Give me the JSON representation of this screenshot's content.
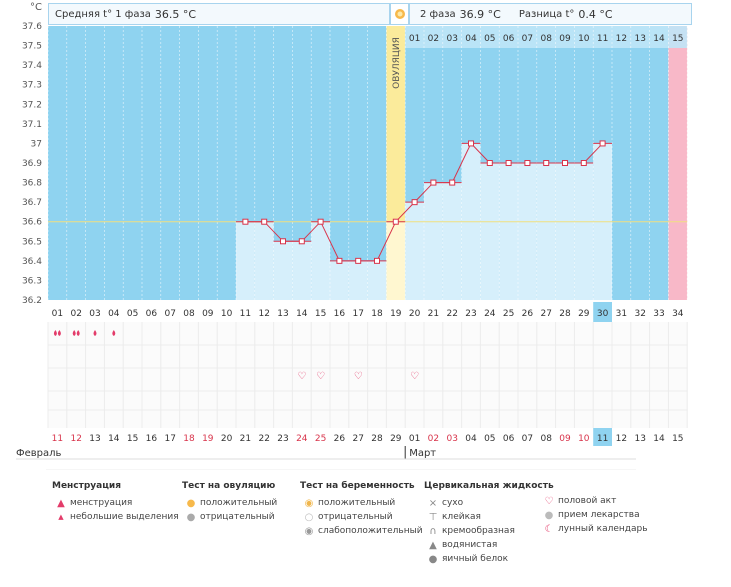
{
  "unit_label": "°C",
  "summary": {
    "phase1_label": "Средняя t° 1 фаза",
    "phase1_value": "36.5 °C",
    "phase2_label": "2 фаза",
    "phase2_value": "36.9 °C",
    "diff_label": "Разница t°",
    "diff_value": "0.4 °C"
  },
  "ovulation_label": "ОВУЛЯЦИЯ",
  "colors": {
    "menstruation_bg": "#8fd3f0",
    "phase2_bg": "#bfe6f7",
    "ovulation": "#fbeb9b",
    "next_period": "#f8b8c8",
    "line": "#d8344b",
    "coverline": "#f0e080"
  },
  "chart_data": {
    "type": "line",
    "title": "",
    "xlabel": "",
    "ylabel": "°C",
    "ylim": [
      36.2,
      37.6
    ],
    "y_ticks": [
      "36.2",
      "36.3",
      "36.4",
      "36.5",
      "36.6",
      "36.7",
      "36.8",
      "36.9",
      "37",
      "37.1",
      "37.2",
      "37.3",
      "37.4",
      "37.5",
      "37.6"
    ],
    "coverline": 36.6,
    "cycle_days": [
      "01",
      "02",
      "03",
      "04",
      "05",
      "06",
      "07",
      "08",
      "09",
      "10",
      "11",
      "12",
      "13",
      "14",
      "15",
      "16",
      "17",
      "18",
      "19",
      "20",
      "21",
      "22",
      "23",
      "24",
      "25",
      "26",
      "27",
      "28",
      "29",
      "30",
      "31",
      "32",
      "33",
      "34"
    ],
    "ovulation_day": 19,
    "today_day": 30,
    "post_ovulation_days": [
      "01",
      "02",
      "03",
      "04",
      "05",
      "06",
      "07",
      "08",
      "09",
      "10",
      "11",
      "12",
      "13",
      "14",
      "15"
    ],
    "temperatures": [
      {
        "day": 11,
        "t": 36.6
      },
      {
        "day": 12,
        "t": 36.6
      },
      {
        "day": 13,
        "t": 36.5
      },
      {
        "day": 14,
        "t": 36.5
      },
      {
        "day": 15,
        "t": 36.6
      },
      {
        "day": 16,
        "t": 36.4
      },
      {
        "day": 17,
        "t": 36.4
      },
      {
        "day": 18,
        "t": 36.4
      },
      {
        "day": 19,
        "t": 36.6
      },
      {
        "day": 20,
        "t": 36.7
      },
      {
        "day": 21,
        "t": 36.8
      },
      {
        "day": 22,
        "t": 36.8
      },
      {
        "day": 23,
        "t": 37.0
      },
      {
        "day": 24,
        "t": 36.9
      },
      {
        "day": 25,
        "t": 36.9
      },
      {
        "day": 26,
        "t": 36.9
      },
      {
        "day": 27,
        "t": 36.9
      },
      {
        "day": 28,
        "t": 36.9
      },
      {
        "day": 29,
        "t": 36.9
      },
      {
        "day": 30,
        "t": 37.0
      }
    ],
    "menstruation_marks": [
      {
        "day": 1,
        "kind": "heavy"
      },
      {
        "day": 2,
        "kind": "heavy"
      },
      {
        "day": 3,
        "kind": "light"
      },
      {
        "day": 4,
        "kind": "light"
      }
    ],
    "intercourse_days": [
      14,
      15,
      17,
      20
    ],
    "calendar_dates": [
      "11",
      "12",
      "13",
      "14",
      "15",
      "16",
      "17",
      "18",
      "19",
      "20",
      "21",
      "22",
      "23",
      "24",
      "25",
      "26",
      "27",
      "28",
      "29",
      "01",
      "02",
      "03",
      "04",
      "05",
      "06",
      "07",
      "08",
      "09",
      "10",
      "11",
      "12",
      "13",
      "14",
      "15"
    ],
    "calendar_red_days": [
      1,
      2,
      8,
      9,
      14,
      15,
      21,
      22,
      28,
      29
    ],
    "month_feb": "Февраль",
    "month_mar": "Март"
  },
  "legend": {
    "menstruation": {
      "title": "Менструация",
      "items": [
        "менструация",
        "небольшие выделения"
      ]
    },
    "ovulation_test": {
      "title": "Тест на овуляцию",
      "items": [
        "положительный",
        "отрицательный"
      ]
    },
    "pregnancy_test": {
      "title": "Тест на беременность",
      "items": [
        "положительный",
        "отрицательный",
        "слабоположительный"
      ]
    },
    "cervical": {
      "title": "Цервикальная жидкость",
      "items": [
        "сухо",
        "клейкая",
        "кремообразная",
        "водянистая",
        "яичный белок"
      ]
    },
    "other": {
      "items": [
        "половой акт",
        "прием лекарства",
        "лунный календарь"
      ]
    }
  }
}
